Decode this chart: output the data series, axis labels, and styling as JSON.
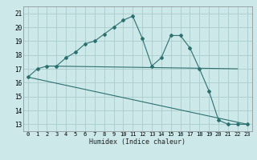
{
  "xlabel": "Humidex (Indice chaleur)",
  "bg_color": "#cce8e8",
  "line_color": "#2d7070",
  "grid_color": "#aacccc",
  "xlim": [
    -0.5,
    23.5
  ],
  "ylim": [
    12.5,
    21.5
  ],
  "yticks": [
    13,
    14,
    15,
    16,
    17,
    18,
    19,
    20,
    21
  ],
  "xticks": [
    0,
    1,
    2,
    3,
    4,
    5,
    6,
    7,
    8,
    9,
    10,
    11,
    12,
    13,
    14,
    15,
    16,
    17,
    18,
    19,
    20,
    21,
    22,
    23
  ],
  "line1_x": [
    0,
    1,
    2,
    3,
    4,
    5,
    6,
    7,
    8,
    9,
    10,
    11,
    12,
    13,
    14,
    15,
    16,
    17,
    18,
    19,
    20,
    21,
    22,
    23
  ],
  "line1_y": [
    16.4,
    17.0,
    17.2,
    17.2,
    17.8,
    18.2,
    18.8,
    19.0,
    19.5,
    20.0,
    20.5,
    20.8,
    19.2,
    17.2,
    17.8,
    19.4,
    19.4,
    18.5,
    17.0,
    15.4,
    13.3,
    13.0,
    13.0,
    13.0
  ],
  "line2_x": [
    2,
    22
  ],
  "line2_y": [
    17.2,
    17.0
  ],
  "line3_x": [
    0,
    23
  ],
  "line3_y": [
    16.4,
    13.0
  ]
}
